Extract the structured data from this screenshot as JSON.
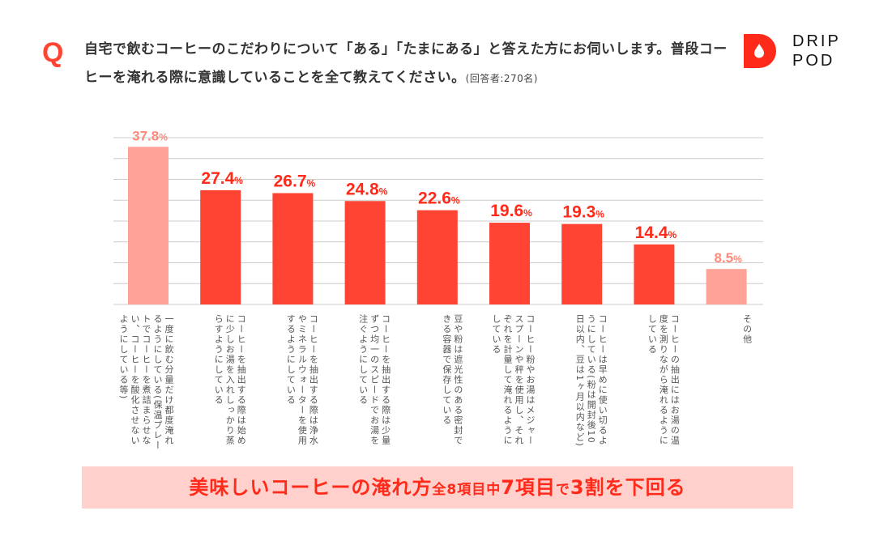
{
  "header": {
    "q_mark": "Q",
    "question": "自宅で飲むコーヒーのこだわりについて「ある」「たまにある」と答えた方にお伺いします。普段コーヒーを淹れる際に意識していることを全て教えてください。",
    "respondents": "(回答者:270名)"
  },
  "logo": {
    "line1": "DRIP",
    "line2": "POD"
  },
  "chart_data": {
    "type": "bar",
    "title": "",
    "xlabel": "",
    "ylabel": "",
    "ylim": [
      0,
      40
    ],
    "grid": true,
    "unit": "%",
    "categories": [
      "一度に飲む分量だけ都度淹れるようにしている(保温プレートでコーヒーを煮詰まらせない、コーヒーを酸化させないようにしている等)",
      "コーヒーを抽出する際は始めに少しお湯を入れしっかり蒸らすようにしている",
      "コーヒーを抽出する際は浄水やミネラルウォーターを使用するようにしている",
      "コーヒーを抽出する際は少量ずつ均一のスピードでお湯を注ぐようにしている",
      "豆や粉は遮光性のある密封できる容器で保存している",
      "コーヒー粉やお湯はメジャースプーンや秤を使用し、それぞれを計量して淹れるようにしている",
      "コーヒーは早めに使い切るようにしている(粉は開封後10日以内、豆は1ヶ月以内など)",
      "コーヒーの抽出にはお湯の温度を測りながら淹れるようにしている",
      "その他"
    ],
    "values": [
      37.8,
      27.4,
      26.7,
      24.8,
      22.6,
      19.6,
      19.3,
      14.4,
      8.5
    ],
    "value_labels": [
      "37.8",
      "27.4",
      "26.7",
      "24.8",
      "22.6",
      "19.6",
      "19.3",
      "14.4",
      "8.5"
    ],
    "highlight": [
      true,
      false,
      false,
      false,
      false,
      false,
      false,
      false,
      true
    ]
  },
  "colors": {
    "accent": "#ff4433",
    "label_red": "#ff2a1a",
    "highlight_bar": "#ffa398",
    "highlight_label": "#ff8a7a",
    "grid": "#cccccc",
    "banner_bg": "#ffd0cc"
  },
  "banner": {
    "part1": "美味しいコーヒーの淹れ方",
    "part2": "全8項目中",
    "part3": "7項目",
    "part4": "で",
    "part5": "3割を下回る"
  }
}
